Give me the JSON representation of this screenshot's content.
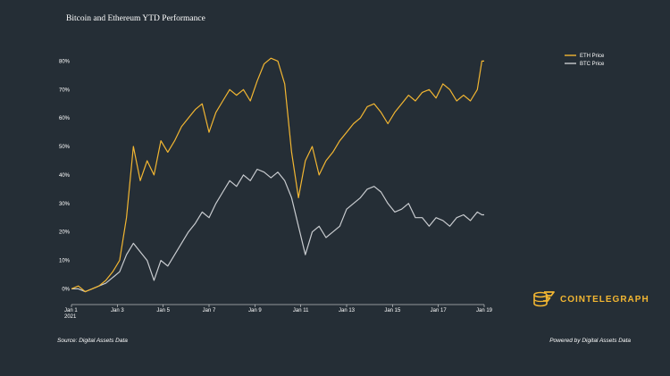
{
  "chart_data": {
    "type": "line",
    "title": "Bitcoin and Ethereum YTD Performance",
    "xlabel": "",
    "ylabel": "",
    "x_tick_labels": [
      "Jan 1\n2021",
      "Jan 3",
      "Jan 5",
      "Jan 7",
      "Jan 9",
      "Jan 11",
      "Jan 13",
      "Jan 15",
      "Jan 17",
      "Jan 19"
    ],
    "x_tick_days": [
      0,
      2,
      4,
      6,
      8,
      10,
      12,
      14,
      16,
      18
    ],
    "y_tick_labels": [
      "0%",
      "10%",
      "20%",
      "30%",
      "40%",
      "50%",
      "60%",
      "70%",
      "80%"
    ],
    "y_tick_values": [
      0,
      10,
      20,
      30,
      40,
      50,
      60,
      70,
      80
    ],
    "xlim_days": [
      0,
      18
    ],
    "ylim": [
      -3,
      82
    ],
    "grid": false,
    "legend_position": "top-right",
    "series": [
      {
        "name": "ETH Price",
        "color": "#f2b632",
        "x_days": [
          0,
          0.3,
          0.6,
          0.9,
          1.2,
          1.5,
          1.8,
          2.1,
          2.4,
          2.7,
          3.0,
          3.3,
          3.6,
          3.9,
          4.2,
          4.5,
          4.8,
          5.1,
          5.4,
          5.7,
          6.0,
          6.3,
          6.6,
          6.9,
          7.2,
          7.5,
          7.8,
          8.1,
          8.4,
          8.7,
          9.0,
          9.3,
          9.6,
          9.9,
          10.2,
          10.5,
          10.8,
          11.1,
          11.4,
          11.7,
          12.0,
          12.3,
          12.6,
          12.9,
          13.2,
          13.5,
          13.8,
          14.1,
          14.4,
          14.7,
          15.0,
          15.3,
          15.6,
          15.9,
          16.2,
          16.5,
          16.8,
          17.1,
          17.4,
          17.7,
          17.9,
          18.0
        ],
        "values": [
          0,
          1,
          -1,
          0,
          1,
          3,
          6,
          10,
          25,
          50,
          38,
          45,
          40,
          52,
          48,
          52,
          57,
          60,
          63,
          65,
          55,
          62,
          66,
          70,
          68,
          70,
          66,
          73,
          79,
          81,
          80,
          72,
          48,
          32,
          45,
          50,
          40,
          45,
          48,
          52,
          55,
          58,
          60,
          64,
          65,
          62,
          58,
          62,
          65,
          68,
          66,
          69,
          70,
          67,
          72,
          70,
          66,
          68,
          66,
          70,
          80,
          80
        ]
      },
      {
        "name": "BTC Price",
        "color": "#c9ccd0",
        "x_days": [
          0,
          0.3,
          0.6,
          0.9,
          1.2,
          1.5,
          1.8,
          2.1,
          2.4,
          2.7,
          3.0,
          3.3,
          3.6,
          3.9,
          4.2,
          4.5,
          4.8,
          5.1,
          5.4,
          5.7,
          6.0,
          6.3,
          6.6,
          6.9,
          7.2,
          7.5,
          7.8,
          8.1,
          8.4,
          8.7,
          9.0,
          9.3,
          9.6,
          9.9,
          10.2,
          10.5,
          10.8,
          11.1,
          11.4,
          11.7,
          12.0,
          12.3,
          12.6,
          12.9,
          13.2,
          13.5,
          13.8,
          14.1,
          14.4,
          14.7,
          15.0,
          15.3,
          15.6,
          15.9,
          16.2,
          16.5,
          16.8,
          17.1,
          17.4,
          17.7,
          17.9,
          18.0
        ],
        "values": [
          0,
          0,
          -1,
          0,
          1,
          2,
          4,
          6,
          12,
          16,
          13,
          10,
          3,
          10,
          8,
          12,
          16,
          20,
          23,
          27,
          25,
          30,
          34,
          38,
          36,
          40,
          38,
          42,
          41,
          39,
          41,
          38,
          32,
          22,
          12,
          20,
          22,
          18,
          20,
          22,
          28,
          30,
          32,
          35,
          36,
          34,
          30,
          27,
          28,
          30,
          25,
          25,
          22,
          25,
          24,
          22,
          25,
          26,
          24,
          27,
          26,
          26
        ]
      }
    ]
  },
  "footer": {
    "source": "Source: Digital Assets Data",
    "powered": "Powered by Digital Assets Data"
  },
  "brand": {
    "name": "COINTELEGRAPH",
    "color": "#f2b632",
    "icon": "cointelegraph-logo-icon"
  }
}
